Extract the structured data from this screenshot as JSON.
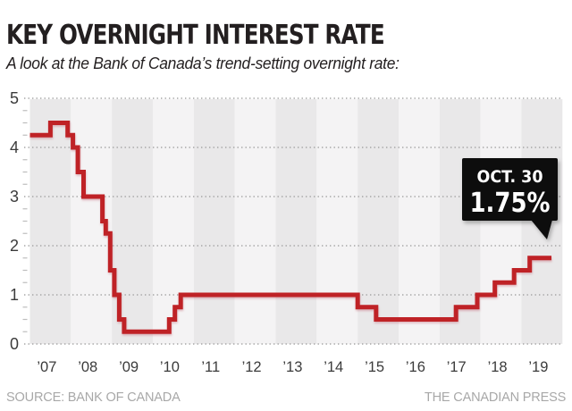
{
  "header": {
    "title": "KEY OVERNIGHT INTEREST RATE",
    "subtitle": "A look at the Bank of Canada’s trend-setting overnight rate:"
  },
  "callout": {
    "date_label": "OCT. 30",
    "value_label": "1.75%"
  },
  "footer": {
    "source": "SOURCE: BANK OF CANADA",
    "credit": "THE CANADIAN PRESS"
  },
  "colors": {
    "line_red": "#bf2026",
    "band_dark": "#e9e8e9",
    "band_light": "#f4f3f4",
    "grid_dots": "#a6a6a6",
    "minor_tick": "#bdbdbd",
    "axis_text": "#3b3b3b",
    "callout_bg": "#0b0b0b",
    "callout_text": "#ffffff",
    "title_text": "#231f20",
    "credit_text": "#a8a8a8"
  },
  "chart_data": {
    "type": "line",
    "subtype": "step",
    "title": "Bank of Canada trend-setting overnight rate (%), 2007–2019",
    "xlabel": "",
    "ylabel": "",
    "x_tick_labels": [
      "’07",
      "’08",
      "’09",
      "’10",
      "’11",
      "’12",
      "’13",
      "’14",
      "’15",
      "’16",
      "’17",
      "’18",
      "’19"
    ],
    "x_years": [
      2007,
      2008,
      2009,
      2010,
      2011,
      2012,
      2013,
      2014,
      2015,
      2016,
      2017,
      2018,
      2019
    ],
    "xlim": [
      2007,
      2020
    ],
    "y_ticks": [
      0,
      1,
      2,
      3,
      4,
      5
    ],
    "ylim": [
      0,
      5
    ],
    "y_minor_tick_interval": 0.25,
    "grid": "dotted horizontal major gridlines, alternating shaded year bands",
    "legend": "none",
    "series": [
      {
        "name": "Overnight rate (%)",
        "points": [
          [
            2007.0,
            4.25
          ],
          [
            2007.5,
            4.5
          ],
          [
            2007.92,
            4.25
          ],
          [
            2008.05,
            4.0
          ],
          [
            2008.17,
            3.5
          ],
          [
            2008.31,
            3.0
          ],
          [
            2008.77,
            2.5
          ],
          [
            2008.85,
            2.25
          ],
          [
            2008.96,
            1.5
          ],
          [
            2009.06,
            1.0
          ],
          [
            2009.18,
            0.5
          ],
          [
            2009.3,
            0.25
          ],
          [
            2010.4,
            0.5
          ],
          [
            2010.54,
            0.75
          ],
          [
            2010.68,
            1.0
          ],
          [
            2015.0,
            0.75
          ],
          [
            2015.45,
            0.5
          ],
          [
            2017.4,
            0.75
          ],
          [
            2017.92,
            1.0
          ],
          [
            2018.35,
            1.25
          ],
          [
            2018.82,
            1.5
          ],
          [
            2019.2,
            1.75
          ],
          [
            2019.73,
            1.75
          ]
        ]
      }
    ],
    "annotation": {
      "label_line1": "OCT. 30",
      "label_line2": "1.75%",
      "points_to": [
        2019.73,
        1.75
      ]
    }
  }
}
